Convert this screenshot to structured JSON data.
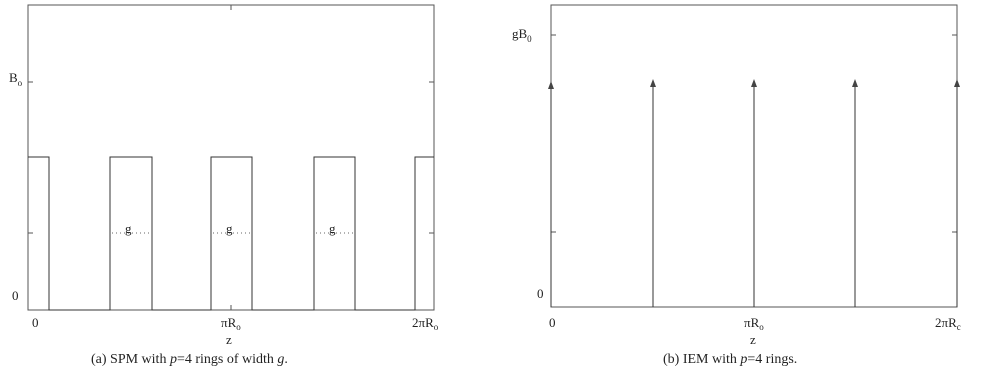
{
  "panel_a": {
    "ylabel_main": "B",
    "ylabel_sub": "o",
    "ytick_zero": "0",
    "xtick_zero": "0",
    "xtick_pi": "πR",
    "xtick_pi_sub": "o",
    "xtick_2pi": "2πR",
    "xtick_2pi_sub": "o",
    "xlabel": "z",
    "gap_label": "g",
    "caption_prefix": "(a) SPM with ",
    "caption_p": "p",
    "caption_mid": "=4 rings of width ",
    "caption_g": "g",
    "caption_end": "."
  },
  "panel_b": {
    "ylabel_main": "gB",
    "ylabel_sub": "0",
    "ytick_zero": "0",
    "xtick_zero": "0",
    "xtick_pi": "πR",
    "xtick_pi_sub": "o",
    "xtick_2pi": "2πR",
    "xtick_2pi_sub": "c",
    "xlabel": "z",
    "caption_prefix": "(b) IEM with ",
    "caption_p": "p",
    "caption_end": "=4 rings."
  }
}
